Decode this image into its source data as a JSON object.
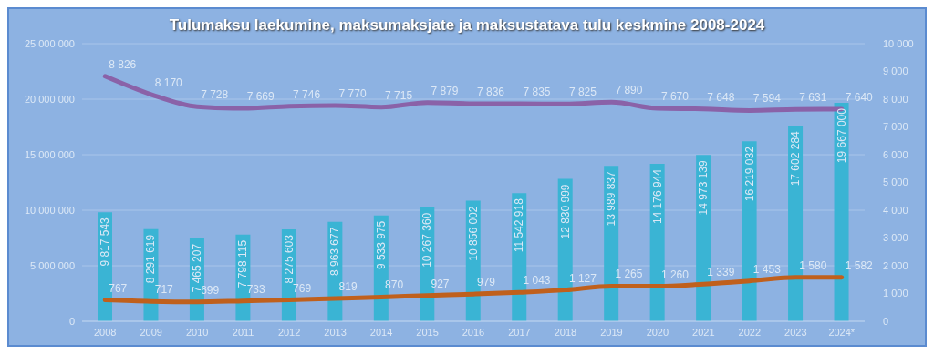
{
  "chart_data": {
    "type": "bar",
    "title": "Tulumaksu laekumine, maksumaksjate ja maksustatava tulu keskmine 2008-2024",
    "categories": [
      "2008",
      "2009",
      "2010",
      "2011",
      "2012",
      "2013",
      "2014",
      "2015",
      "2016",
      "2017",
      "2018",
      "2019",
      "2020",
      "2021",
      "2022",
      "2023",
      "2024*"
    ],
    "series": [
      {
        "color": "#3ab4d4",
        "values": [
          9817543,
          8291619,
          7465207,
          7798115,
          8275603,
          8963677,
          9533975,
          10267360,
          10856002,
          11542918,
          12830999,
          13989837,
          14176944,
          14973139,
          16219032,
          17602284,
          19667000
        ],
        "value_labels": [
          "9 817 543",
          "8 291 619",
          "7 465 207",
          "7 798 115",
          "8 275 603",
          "8 963 677",
          "9 533 975",
          "10 267 360",
          "10 856 002",
          "11 542 918",
          "12 830 999",
          "13 989 837",
          "14 176 944",
          "14 973 139",
          "16 219 032",
          "17 602 284",
          "19 667 000"
        ]
      },
      {
        "type": "line",
        "axis": "y2",
        "color": "#8a62a8",
        "values": [
          8826,
          8170,
          7728,
          7669,
          7746,
          7770,
          7715,
          7879,
          7836,
          7835,
          7825,
          7890,
          7670,
          7648,
          7594,
          7631,
          7640
        ],
        "value_labels": [
          "8 826",
          "8 170",
          "7 728",
          "7 669",
          "7 746",
          "7 770",
          "7 715",
          "7 879",
          "7 836",
          "7 835",
          "7 825",
          "7 890",
          "7 670",
          "7 648",
          "7 594",
          "7 631",
          "7 640"
        ]
      },
      {
        "type": "line",
        "axis": "y2",
        "color": "#c0601c",
        "values": [
          767,
          717,
          699,
          733,
          769,
          819,
          870,
          927,
          979,
          1043,
          1127,
          1265,
          1260,
          1339,
          1453,
          1580,
          1582
        ],
        "value_labels": [
          "767",
          "717",
          "699",
          "733",
          "769",
          "819",
          "870",
          "927",
          "979",
          "1 043",
          "1 127",
          "1 265",
          "1 260",
          "1 339",
          "1 453",
          "1 580",
          "1 582"
        ]
      }
    ],
    "ylim": [
      0,
      25000000
    ],
    "yticks": [
      0,
      {
        "value": 5000000,
        "label": "5 000 000"
      },
      {
        "value": 10000000,
        "label": "10 000 000"
      },
      {
        "value": 15000000,
        "label": "15 000 000"
      },
      {
        "value": 20000000,
        "label": "20 000 000"
      },
      {
        "value": 25000000,
        "label": "25 000 000"
      }
    ],
    "y2lim": [
      0,
      10000
    ],
    "y2ticks": [
      0,
      {
        "value": 1000,
        "label": "1 000"
      },
      {
        "value": 2000,
        "label": "2 000"
      },
      {
        "value": 3000,
        "label": "3 000"
      },
      {
        "value": 4000,
        "label": "4 000"
      },
      {
        "value": 5000,
        "label": "5 000"
      },
      {
        "value": 6000,
        "label": "6 000"
      },
      {
        "value": 7000,
        "label": "7 000"
      },
      {
        "value": 8000,
        "label": "8 000"
      },
      {
        "value": 9000,
        "label": "9 000"
      },
      {
        "value": 10000,
        "label": "10 000"
      }
    ],
    "grid": "y",
    "line_style": "solid",
    "marker": "none"
  }
}
